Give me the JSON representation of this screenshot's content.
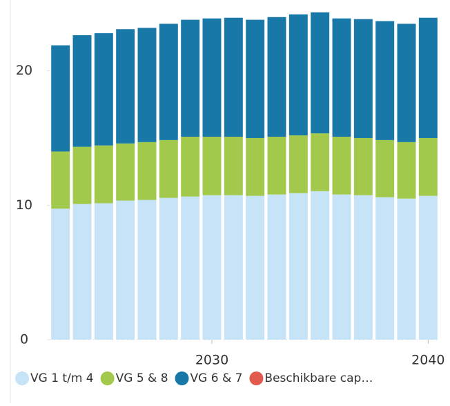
{
  "chart_data": {
    "type": "stacked_bar",
    "x": [
      2023,
      2024,
      2025,
      2026,
      2027,
      2028,
      2029,
      2030,
      2031,
      2032,
      2033,
      2034,
      2035,
      2036,
      2037,
      2038,
      2039,
      2040
    ],
    "xlim": [
      2022.5,
      2040.5
    ],
    "xticks": [
      2030,
      2040
    ],
    "ylim": [
      0,
      24.5
    ],
    "yticks": [
      0,
      10,
      20
    ],
    "series": [
      {
        "name": "VG 1 t/m 4",
        "color": "#c6e3f7",
        "values": [
          9.75,
          10.1,
          10.15,
          10.35,
          10.4,
          10.55,
          10.65,
          10.75,
          10.75,
          10.7,
          10.8,
          10.9,
          11.05,
          10.8,
          10.75,
          10.6,
          10.5,
          10.7
        ]
      },
      {
        "name": "VG 5 & 8",
        "color": "#a2c94b",
        "values": [
          4.25,
          4.25,
          4.3,
          4.25,
          4.3,
          4.3,
          4.45,
          4.35,
          4.35,
          4.3,
          4.3,
          4.3,
          4.3,
          4.3,
          4.25,
          4.25,
          4.2,
          4.3
        ]
      },
      {
        "name": "VG 6 & 7",
        "color": "#1878a8",
        "values": [
          7.9,
          8.3,
          8.35,
          8.5,
          8.5,
          8.65,
          8.7,
          8.8,
          8.85,
          8.8,
          8.9,
          9.0,
          9.0,
          8.8,
          8.85,
          8.85,
          8.8,
          8.95
        ]
      },
      {
        "name": "Beschikbare cap…",
        "color": "#e05a4e",
        "values": [
          null,
          null,
          null,
          null,
          null,
          null,
          null,
          null,
          null,
          null,
          null,
          null,
          null,
          null,
          null,
          null,
          null,
          null
        ]
      }
    ]
  }
}
